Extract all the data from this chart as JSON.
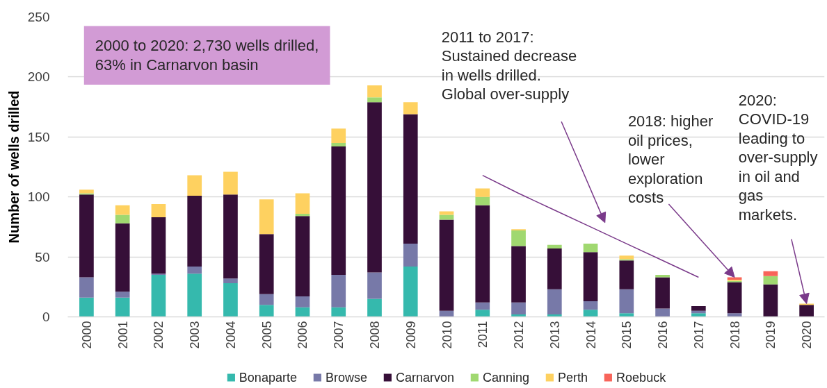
{
  "chart_data": {
    "type": "bar",
    "stacked": true,
    "ylabel": "Number of wells drilled",
    "categories": [
      "2000",
      "2001",
      "2002",
      "2003",
      "2004",
      "2005",
      "2006",
      "2007",
      "2008",
      "2009",
      "2010",
      "2011",
      "2012",
      "2013",
      "2014",
      "2015",
      "2016",
      "2017",
      "2018",
      "2019",
      "2020"
    ],
    "ylim": [
      0,
      250
    ],
    "yticks": [
      0,
      50,
      100,
      150,
      200,
      250
    ],
    "grid": "y",
    "legend": "bottom",
    "series": [
      {
        "name": "Bonaparte",
        "color": "#35b9ad",
        "values": [
          16,
          16,
          35,
          36,
          28,
          10,
          8,
          8,
          15,
          42,
          null,
          6,
          2,
          2,
          6,
          3,
          null,
          3,
          null,
          null,
          null
        ]
      },
      {
        "name": "Browse",
        "color": "#7779a8",
        "values": [
          17,
          5,
          1,
          6,
          4,
          9,
          9,
          27,
          22,
          19,
          5,
          6,
          10,
          21,
          7,
          20,
          7,
          2,
          3,
          null,
          null
        ]
      },
      {
        "name": "Carnarvon",
        "color": "#360f38",
        "values": [
          69,
          57,
          47,
          59,
          70,
          50,
          67,
          107,
          142,
          108,
          76,
          81,
          47,
          34,
          41,
          24,
          26,
          4,
          26,
          27,
          10
        ]
      },
      {
        "name": "Canning",
        "color": "#a0d870",
        "values": [
          1,
          7,
          null,
          null,
          null,
          null,
          2,
          3,
          4,
          null,
          4,
          7,
          13,
          3,
          7,
          1,
          2,
          null,
          1,
          7,
          null
        ]
      },
      {
        "name": "Perth",
        "color": "#fed160",
        "values": [
          3,
          8,
          11,
          17,
          19,
          29,
          17,
          12,
          10,
          10,
          3,
          7,
          1,
          null,
          null,
          3,
          null,
          null,
          1,
          null,
          1
        ]
      },
      {
        "name": "Roebuck",
        "color": "#f8645a",
        "values": [
          null,
          null,
          null,
          null,
          null,
          null,
          null,
          null,
          null,
          null,
          null,
          null,
          null,
          null,
          null,
          null,
          null,
          null,
          2,
          4,
          null
        ]
      },
      {
        "type": "line",
        "color": "#7a3a8a",
        "values": [
          null,
          null,
          null,
          null,
          null,
          null,
          null,
          null,
          null,
          null,
          null,
          118,
          103,
          89,
          75,
          61,
          47,
          33,
          null,
          null,
          null
        ]
      }
    ],
    "annotations": [
      "2000 to 2020: 2,730 wells drilled,\n63% in Carnarvon basin",
      "2011 to 2017:\nSustained decrease\nin wells drilled.\nGlobal over-supply",
      {
        "text": "2018: higher\noil prices,\nlower\nexploration\ncosts",
        "x": "2018",
        "y": 33
      },
      {
        "text": "2020:\nCOVID-19\nleading to\nover-supply\nin oil and\ngas\nmarkets.",
        "x": "2020",
        "y": 11
      }
    ]
  }
}
